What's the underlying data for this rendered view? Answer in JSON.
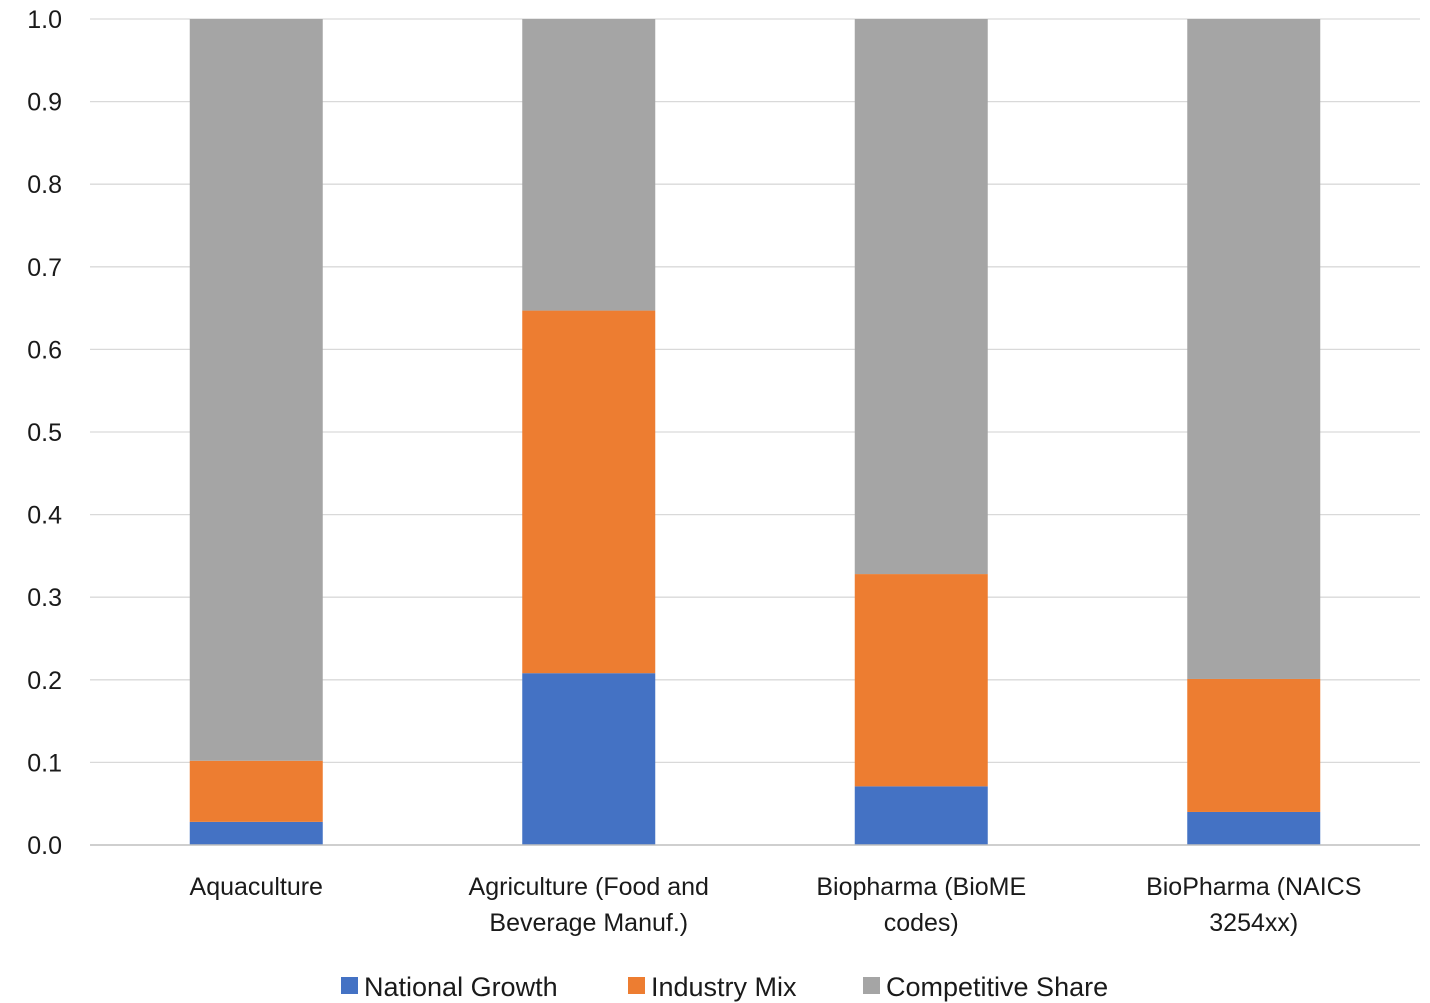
{
  "chart_data": {
    "type": "bar",
    "stacked": true,
    "categories": [
      [
        "Aquaculture"
      ],
      [
        "Agriculture (Food and",
        "Beverage Manuf.)"
      ],
      [
        "Biopharma (BioME",
        "codes)"
      ],
      [
        "BioPharma (NAICS",
        "3254xx)"
      ]
    ],
    "series": [
      {
        "name": "National Growth",
        "color": "#4472c4",
        "values": [
          0.028,
          0.208,
          0.071,
          0.04
        ]
      },
      {
        "name": "Industry Mix",
        "color": "#ed7d31",
        "values": [
          0.074,
          0.439,
          0.257,
          0.161
        ]
      },
      {
        "name": "Competitive Share",
        "color": "#a5a5a5",
        "values": [
          0.898,
          0.353,
          0.672,
          0.799
        ]
      }
    ],
    "ylim": [
      0,
      1.0
    ],
    "yticks": [
      "0.0",
      "0.1",
      "0.2",
      "0.3",
      "0.4",
      "0.5",
      "0.6",
      "0.7",
      "0.8",
      "0.9",
      "1.0"
    ],
    "grid": true,
    "legend_position": "bottom",
    "title": "",
    "xlabel": "",
    "ylabel": ""
  }
}
